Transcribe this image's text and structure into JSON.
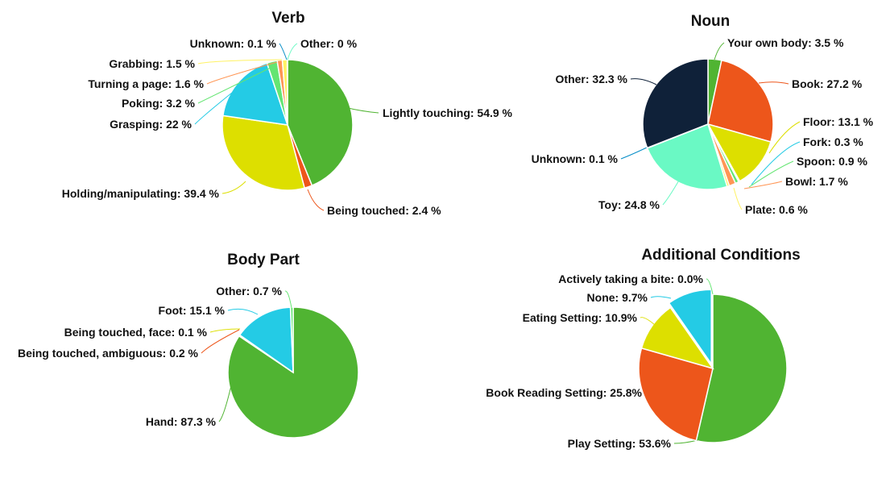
{
  "chart_data": [
    {
      "type": "pie",
      "title": "Verb",
      "series": [
        {
          "label": "Lightly touching: 54.9 %",
          "value": 54.9,
          "color": "#50b432"
        },
        {
          "label": "Being touched: 2.4 %",
          "value": 2.4,
          "color": "#ed561b"
        },
        {
          "label": "Holding/manipulating: 39.4 %",
          "value": 39.4,
          "color": "#dddf00"
        },
        {
          "label": "Grasping: 22 %",
          "value": 22,
          "color": "#24cbe5"
        },
        {
          "label": "Poking: 3.2 %",
          "value": 3.2,
          "color": "#64e572"
        },
        {
          "label": "Turning a page: 1.6 %",
          "value": 1.6,
          "color": "#ff9655"
        },
        {
          "label": "Grabbing: 1.5 %",
          "value": 1.5,
          "color": "#fff263"
        },
        {
          "label": "Unknown: 0.1 %",
          "value": 0.1,
          "color": "#058dc7"
        },
        {
          "label": "Other: 0 %",
          "value": 0,
          "color": "#6af9c4"
        }
      ]
    },
    {
      "type": "pie",
      "title": "Noun",
      "series": [
        {
          "label": "Your own body: 3.5 %",
          "value": 3.5,
          "color": "#50b432"
        },
        {
          "label": "Book: 27.2 %",
          "value": 27.2,
          "color": "#ed561b"
        },
        {
          "label": "Floor: 13.1 %",
          "value": 13.1,
          "color": "#dddf00"
        },
        {
          "label": "Fork: 0.3 %",
          "value": 0.3,
          "color": "#24cbe5"
        },
        {
          "label": "Spoon: 0.9 %",
          "value": 0.9,
          "color": "#64e572"
        },
        {
          "label": "Bowl: 1.7 %",
          "value": 1.7,
          "color": "#ff9655"
        },
        {
          "label": "Plate: 0.6 %",
          "value": 0.6,
          "color": "#fff263"
        },
        {
          "label": "Toy: 24.8 %",
          "value": 24.8,
          "color": "#6af9c4"
        },
        {
          "label": "Unknown: 0.1 %",
          "value": 0.1,
          "color": "#058dc7"
        },
        {
          "label": "Other: 32.3 %",
          "value": 32.3,
          "color": "#0f2139"
        }
      ]
    },
    {
      "type": "pie",
      "title": "Body Part",
      "series": [
        {
          "label": "Hand: 87.3 %",
          "value": 87.3,
          "color": "#50b432"
        },
        {
          "label": "Being touched, ambiguous: 0.2 %",
          "value": 0.2,
          "color": "#ed561b"
        },
        {
          "label": "Being touched, face: 0.1 %",
          "value": 0.1,
          "color": "#dddf00"
        },
        {
          "label": "Foot: 15.1 %",
          "value": 15.1,
          "color": "#24cbe5"
        },
        {
          "label": "Other: 0.7 %",
          "value": 0.7,
          "color": "#64e572"
        }
      ]
    },
    {
      "type": "pie",
      "title": "Additional Conditions",
      "series": [
        {
          "label": "Play Setting: 53.6%",
          "value": 53.6,
          "color": "#50b432"
        },
        {
          "label": "Book Reading Setting: 25.8%",
          "value": 25.8,
          "color": "#ed561b"
        },
        {
          "label": "Eating Setting: 10.9%",
          "value": 10.9,
          "color": "#dddf00"
        },
        {
          "label": "None: 9.7%",
          "value": 9.7,
          "color": "#24cbe5"
        },
        {
          "label": "Actively taking a bite: 0.0%",
          "value": 0.0,
          "color": "#64e572"
        }
      ]
    }
  ]
}
